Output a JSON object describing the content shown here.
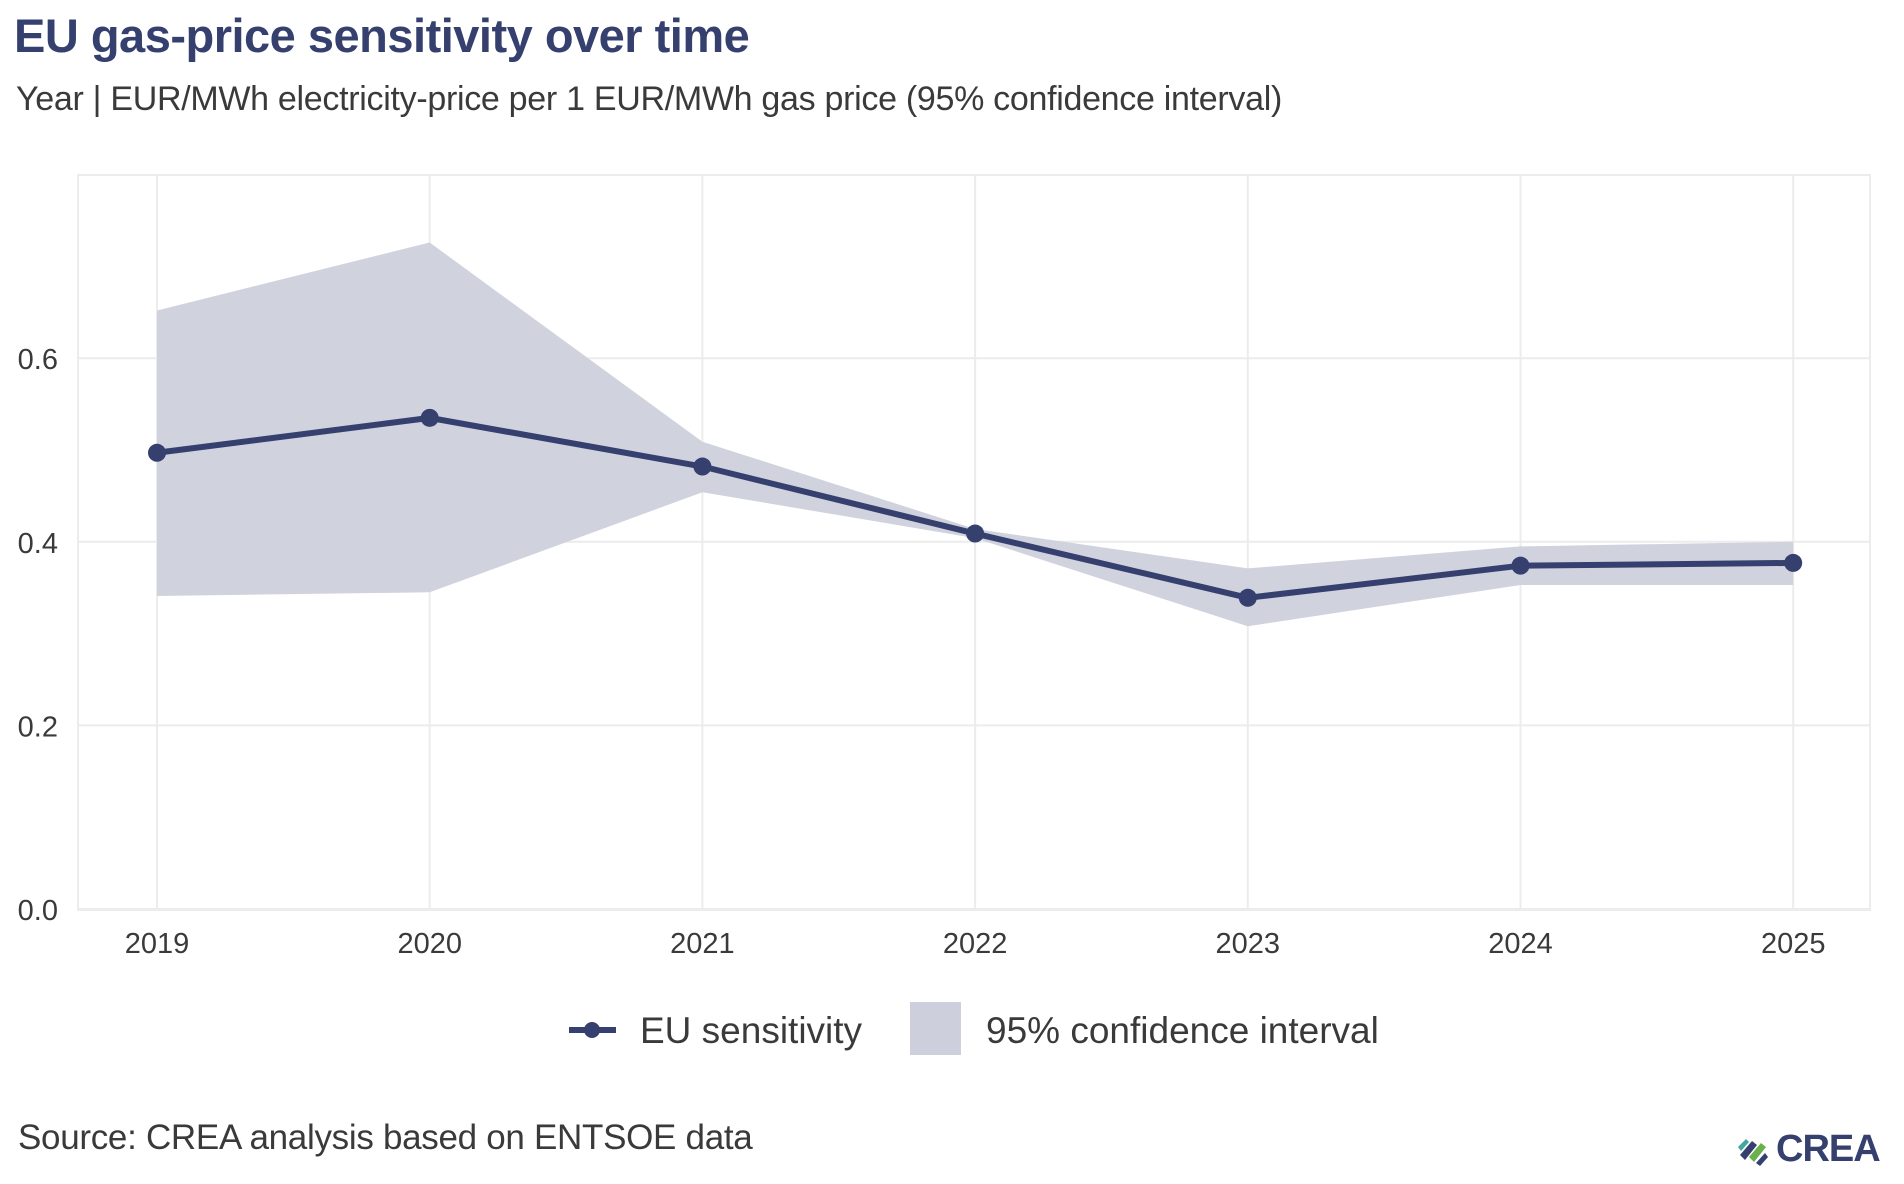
{
  "header": {
    "title": "EU gas-price sensitivity over time",
    "subtitle": "Year | EUR/MWh electricity-price per 1 EUR/MWh gas price (95% confidence interval)"
  },
  "footer": {
    "source": "Source: CREA analysis based on ENTSOE data",
    "logo_text": "CREA"
  },
  "colors": {
    "line": "#35406e",
    "band": "#cdd0dc",
    "grid": "#ececec",
    "text": "#3a3a3a",
    "logo_green": "#6ab04c",
    "logo_teal": "#3fa8a0"
  },
  "chart_data": {
    "type": "line",
    "title": "EU gas-price sensitivity over time",
    "subtitle": "Year | EUR/MWh electricity-price per 1 EUR/MWh gas price (95% confidence interval)",
    "xlabel": "",
    "ylabel": "",
    "x": [
      2019,
      2020,
      2021,
      2022,
      2023,
      2024,
      2025
    ],
    "x_tick_labels": [
      "2019",
      "2020",
      "2021",
      "2022",
      "2023",
      "2024",
      "2025"
    ],
    "y_ticks": [
      0.0,
      0.2,
      0.4,
      0.6
    ],
    "y_tick_labels": [
      "0.0",
      "0.2",
      "0.4",
      "0.6"
    ],
    "ylim": [
      0,
      0.8
    ],
    "xlim": [
      2018.71,
      2025.43
    ],
    "grid": true,
    "series": [
      {
        "name": "EU sensitivity",
        "type": "line+markers",
        "values": [
          0.497,
          0.535,
          0.482,
          0.409,
          0.339,
          0.374,
          0.377
        ]
      },
      {
        "name": "95% confidence interval",
        "type": "band",
        "lower": [
          0.341,
          0.345,
          0.454,
          0.404,
          0.308,
          0.353,
          0.353
        ],
        "upper": [
          0.652,
          0.726,
          0.509,
          0.414,
          0.371,
          0.395,
          0.4
        ]
      }
    ],
    "legend": {
      "placement": "bottom-center",
      "entries": [
        {
          "label": "EU sensitivity",
          "kind": "line-marker"
        },
        {
          "label": "95% confidence interval",
          "kind": "fill"
        }
      ]
    },
    "source": "Source: CREA analysis based on ENTSOE data"
  }
}
